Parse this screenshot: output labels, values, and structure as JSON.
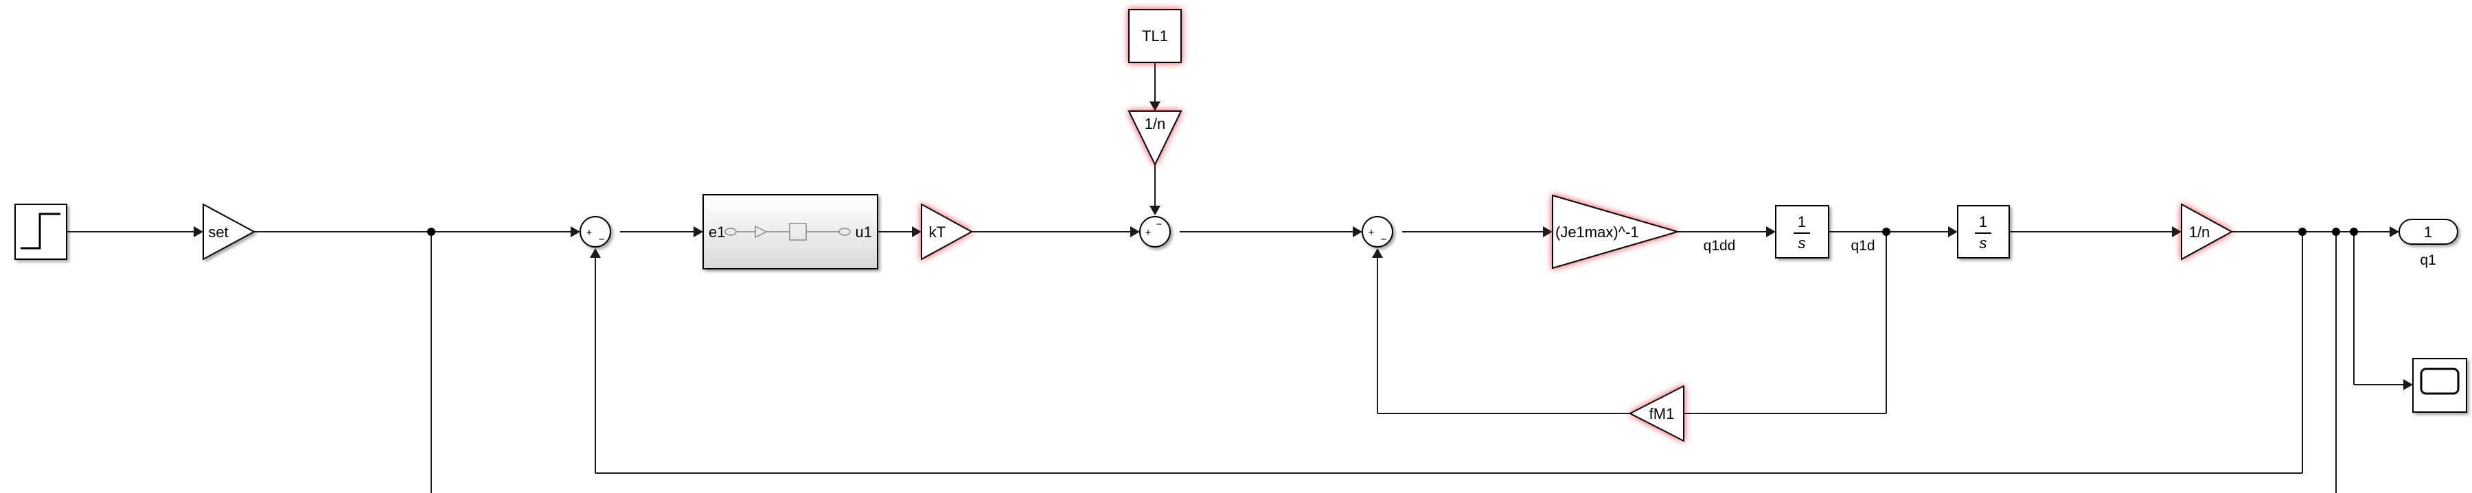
{
  "diagram": {
    "blocks": {
      "set_gain": "set",
      "subsystem_in": "e1",
      "subsystem_out": "u1",
      "kT_gain": "kT",
      "TL1_constant": "TL1",
      "n_gain_top": "1/n",
      "inertia_gain": "(Je1max)^-1",
      "integrator1_num": "1",
      "integrator1_den": "s",
      "integrator2_num": "1",
      "integrator2_den": "s",
      "n_gain_out": "1/n",
      "friction_gain": "fM1",
      "outport_number": "1"
    },
    "signals": {
      "q1dd": "q1dd",
      "q1d": "q1d",
      "q1": "q1"
    },
    "sum_signs": {
      "plus": "+",
      "minus": "−"
    },
    "colors": {
      "highlight": "#e0001b",
      "line": "#1a1a1a"
    }
  }
}
